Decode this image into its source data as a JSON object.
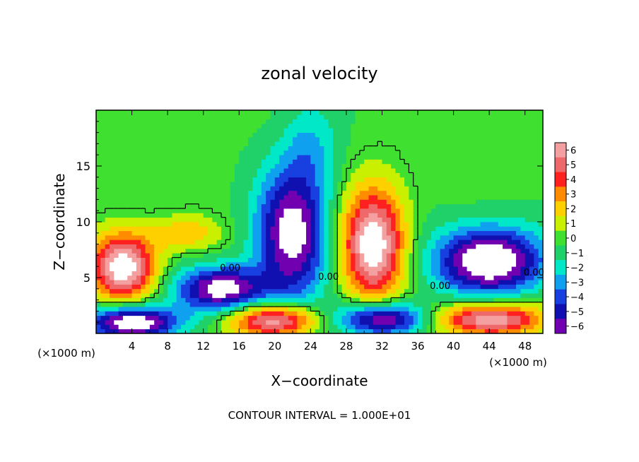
{
  "chart_data": {
    "type": "heatmap",
    "title": "zonal velocity",
    "xlabel": "X−coordinate",
    "ylabel": "Z−coordinate",
    "x_unit": "(×1000 m)",
    "z_unit": "(×1000 m)",
    "footer": "CONTOUR INTERVAL = 1.000E+01",
    "xlim": [
      0,
      50
    ],
    "ylim": [
      0,
      20
    ],
    "x_ticks": [
      "4",
      "8",
      "12",
      "16",
      "20",
      "24",
      "28",
      "32",
      "36",
      "40",
      "44",
      "48"
    ],
    "y_ticks": [
      "5",
      "10",
      "15"
    ],
    "colorbar_ticks": [
      "6",
      "5",
      "4",
      "3",
      "2",
      "1",
      "0",
      "−1",
      "−2",
      "−3",
      "−4",
      "−5",
      "−6"
    ],
    "colorbar_range": [
      -6,
      6
    ],
    "contour_labels": [
      "0.00",
      "0.00",
      "0.00",
      "0.00"
    ],
    "features": [
      {
        "kind": "jet",
        "sign": "negative",
        "x": 22,
        "z": 9,
        "rx": 4,
        "rz": 6,
        "strength": 7
      },
      {
        "kind": "jet",
        "sign": "positive",
        "x": 31,
        "z": 8,
        "rx": 3.5,
        "rz": 5,
        "strength": 8
      },
      {
        "kind": "jet",
        "sign": "negative",
        "x": 44,
        "z": 6.5,
        "rx": 6,
        "rz": 3,
        "strength": 8
      },
      {
        "kind": "jet",
        "sign": "positive",
        "x": 3,
        "z": 6,
        "rx": 3.5,
        "rz": 3,
        "strength": 8
      },
      {
        "kind": "jet",
        "sign": "negative",
        "x": 14,
        "z": 4,
        "rx": 5,
        "rz": 2,
        "strength": 7
      },
      {
        "kind": "jet",
        "sign": "negative",
        "x": 4,
        "z": 1,
        "rx": 5,
        "rz": 1.5,
        "strength": 8
      },
      {
        "kind": "jet",
        "sign": "positive",
        "x": 20,
        "z": 1.2,
        "rx": 5,
        "rz": 1.5,
        "strength": 7
      },
      {
        "kind": "jet",
        "sign": "negative",
        "x": 32,
        "z": 1.3,
        "rx": 5,
        "rz": 1.5,
        "strength": 7
      },
      {
        "kind": "jet",
        "sign": "positive",
        "x": 44,
        "z": 1.3,
        "rx": 6,
        "rz": 1.5,
        "strength": 7
      },
      {
        "kind": "jet",
        "sign": "negative",
        "x": 24,
        "z": 17,
        "rx": 3,
        "rz": 4,
        "strength": 1.8
      },
      {
        "kind": "jet",
        "sign": "positive",
        "x": 10,
        "z": 9,
        "rx": 4,
        "rz": 1.5,
        "strength": 2.5
      }
    ],
    "colors": {
      "6": "#f4a0a0",
      "5": "#ee6a6a",
      "4": "#ff2020",
      "3": "#ff8c00",
      "2": "#ffd000",
      "1": "#c8f000",
      "0": "#40e030",
      "-1": "#20d068",
      "-2": "#00e8c8",
      "-3": "#10a0f0",
      "-4": "#1840e0",
      "-5": "#1010b0",
      "-6": "#7000b0",
      "saturated": "#ffffff"
    }
  }
}
